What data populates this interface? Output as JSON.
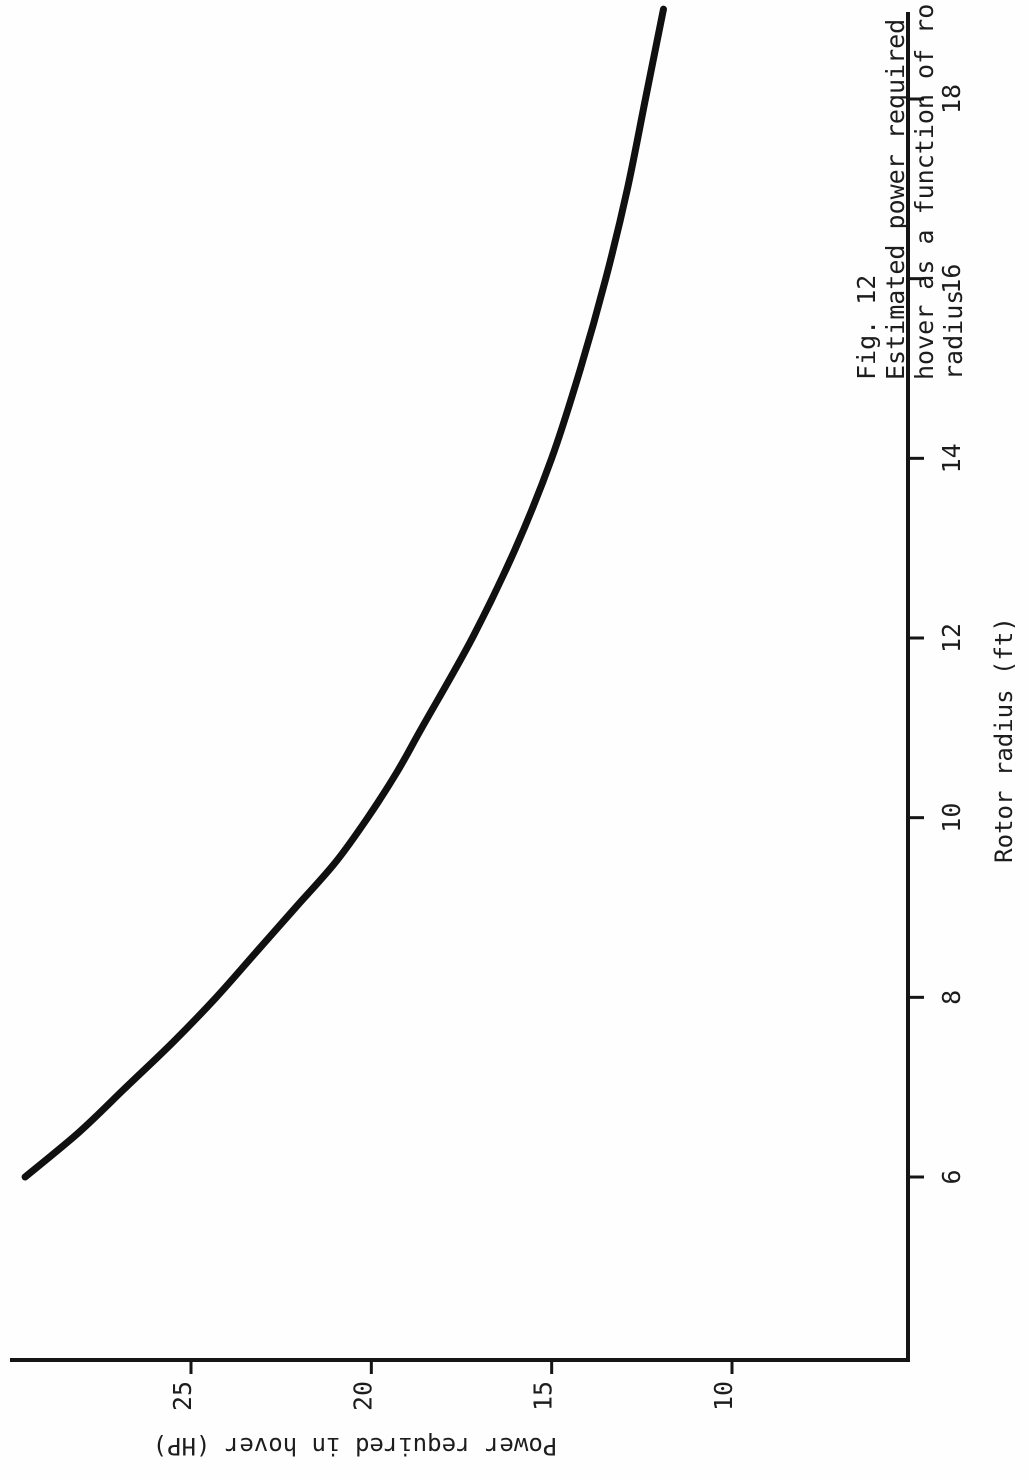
{
  "caption": {
    "figure_label": "Fig. 12",
    "line_1": "Estimated power required",
    "line_2": "hover as a function of ro",
    "line_3": "radius"
  },
  "chart_data": {
    "type": "line",
    "xlabel": "Rotor radius (ft)",
    "ylabel": "Power required in hover (HP)",
    "xlim": [
      4,
      19.5
    ],
    "ylim": [
      7.5,
      30
    ],
    "x_ticks": [
      6,
      8,
      10,
      12,
      14,
      16,
      18
    ],
    "y_ticks": [
      10,
      15,
      20,
      25
    ],
    "x_tick_labels": [
      "6",
      "8",
      "10",
      "12",
      "14",
      "16",
      "18"
    ],
    "y_tick_labels": [
      "10",
      "15",
      "20",
      "25"
    ],
    "grid": false,
    "series": [
      {
        "color": "#101010",
        "x": [
          6.0,
          6.5,
          7.0,
          7.5,
          8.0,
          8.5,
          9.0,
          9.5,
          10.0,
          10.5,
          11.0,
          12.0,
          13.0,
          14.0,
          15.0,
          16.0,
          17.0,
          18.0,
          19.0
        ],
        "y": [
          29.6,
          28.1,
          26.8,
          25.5,
          24.3,
          23.2,
          22.1,
          21.0,
          20.1,
          19.3,
          18.6,
          17.2,
          16.0,
          15.0,
          14.2,
          13.5,
          12.9,
          12.4,
          11.9
        ]
      }
    ]
  }
}
